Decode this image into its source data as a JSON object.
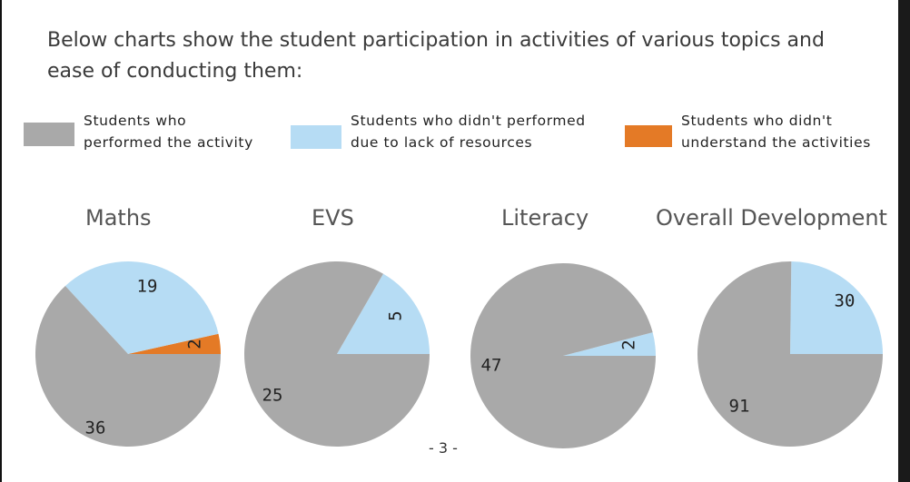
{
  "intro": "Below charts show the student participation in activities of various topics and ease of conducting them:",
  "legend": [
    {
      "line1": "Students who",
      "line2": "performed the activity",
      "color": "#a9a9a9"
    },
    {
      "line1": "Students who didn't performed",
      "line2": "due to lack of resources",
      "color": "#b6dcf4"
    },
    {
      "line1": "Students who didn't",
      "line2": "understand the activities",
      "color": "#e47a26"
    }
  ],
  "page_number": "- 3 -",
  "chart_data": [
    {
      "type": "pie",
      "title": "Maths",
      "labels": [
        "Students who performed the activity",
        "Students who didn't performed due to lack of resources",
        "Students who didn't understand the activities"
      ],
      "values": [
        36,
        19,
        2
      ]
    },
    {
      "type": "pie",
      "title": "EVS",
      "labels": [
        "Students who performed the activity",
        "Students who didn't performed due to lack of resources"
      ],
      "values": [
        25,
        5
      ]
    },
    {
      "type": "pie",
      "title": "Literacy",
      "labels": [
        "Students who performed the activity",
        "Students who didn't performed due to lack of resources"
      ],
      "values": [
        47,
        2
      ]
    },
    {
      "type": "pie",
      "title": "Overall Development",
      "labels": [
        "Students who performed the activity",
        "Students who didn't performed due to lack of resources"
      ],
      "values": [
        91,
        30
      ]
    }
  ]
}
